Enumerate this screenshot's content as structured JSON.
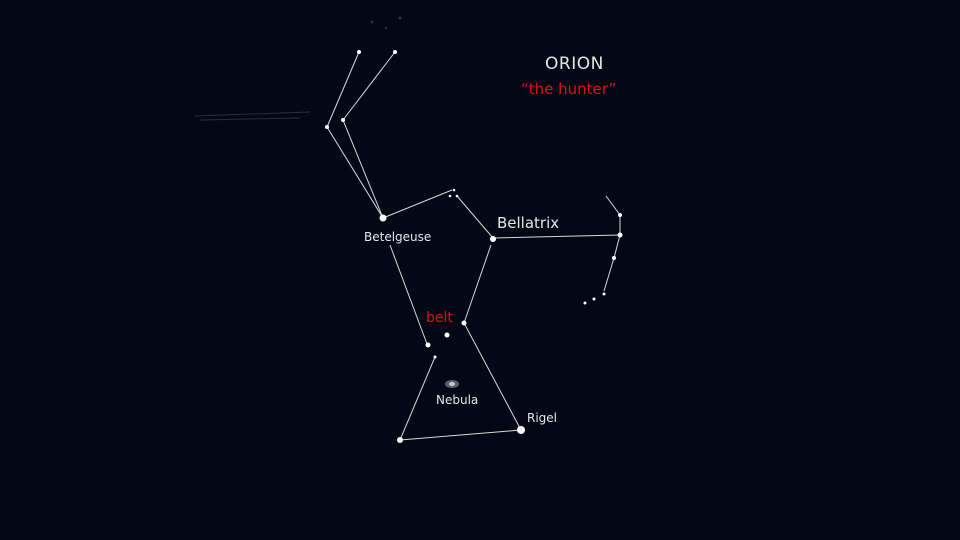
{
  "title": "ORION",
  "subtitle": "“the hunter”",
  "labels": {
    "betelgeuse": "Betelgeuse",
    "bellatrix": "Bellatrix",
    "belt": "belt",
    "nebula": "Nebula",
    "rigel": "Rigel"
  },
  "colors": {
    "background": "#040716",
    "line": "#d8d8d8",
    "star": "#ffffff",
    "text": "#e6e6e6",
    "accent": "#e01010"
  }
}
